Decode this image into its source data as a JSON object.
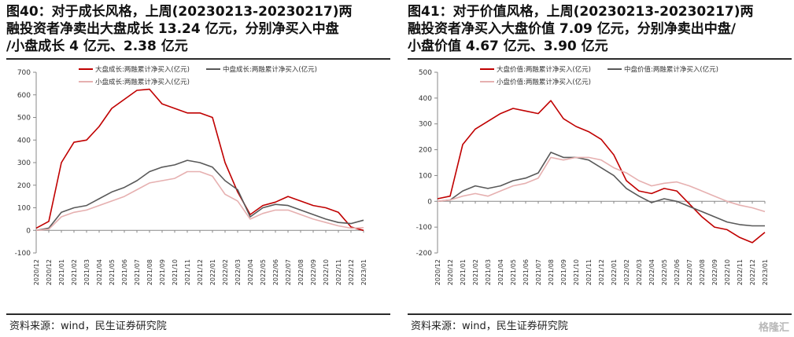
{
  "panels": [
    {
      "title_lines": [
        "图40：对于成长风格，上周(20230213-20230217)两",
        "融投资者净卖出大盘成长 13.24 亿元，分别净买入中盘",
        "/小盘成长 4 亿元、2.38 亿元"
      ],
      "source": "资料来源：wind，民生证券研究院"
    },
    {
      "title_lines": [
        "图41：对于价值风格，上周(20230213-20230217)两",
        "融投资者净买入大盘价值 7.09 亿元，分别净卖出中盘/",
        "小盘价值 4.67 亿元、3.90 亿元"
      ],
      "source": "资料来源：wind，民生证券研究院"
    }
  ],
  "watermark": "格隆汇",
  "chart_data": [
    {
      "type": "line",
      "ylim": [
        -100,
        700
      ],
      "yticks": [
        -100,
        0,
        100,
        200,
        300,
        400,
        500,
        600,
        700
      ],
      "categories": [
        "2020/12",
        "2020/12",
        "2021/01",
        "2021/02",
        "2021/03",
        "2021/04",
        "2021/05",
        "2021/06",
        "2021/07",
        "2021/08",
        "2021/09",
        "2021/10",
        "2021/11",
        "2021/12",
        "2022/01",
        "2022/02",
        "2022/03",
        "2022/04",
        "2022/05",
        "2022/06",
        "2022/07",
        "2022/08",
        "2022/09",
        "2022/10",
        "2022/11",
        "2022/12",
        "2023/01"
      ],
      "legend_position": "top",
      "grid": false,
      "colors": [
        "#c00000",
        "#595959",
        "#e6b0b0"
      ],
      "series": [
        {
          "name": "大盘成长:两融累计净买入(亿元)",
          "values": [
            10,
            40,
            300,
            390,
            400,
            460,
            540,
            580,
            620,
            625,
            560,
            540,
            520,
            520,
            500,
            300,
            170,
            70,
            110,
            125,
            150,
            130,
            110,
            100,
            80,
            15,
            0
          ]
        },
        {
          "name": "中盘成长:两融累计净买入(亿元)",
          "values": [
            0,
            10,
            80,
            100,
            110,
            140,
            170,
            190,
            220,
            260,
            280,
            290,
            310,
            300,
            280,
            220,
            180,
            60,
            100,
            115,
            110,
            90,
            70,
            50,
            35,
            30,
            45
          ]
        },
        {
          "name": "小盘成长:两融累计净买入(亿元)",
          "values": [
            0,
            5,
            60,
            80,
            90,
            110,
            130,
            150,
            180,
            210,
            220,
            230,
            260,
            260,
            240,
            160,
            130,
            50,
            75,
            90,
            90,
            70,
            50,
            35,
            20,
            10,
            12
          ]
        }
      ]
    },
    {
      "type": "line",
      "ylim": [
        -200,
        500
      ],
      "yticks": [
        -200,
        -100,
        0,
        100,
        200,
        300,
        400,
        500
      ],
      "categories": [
        "2020/12",
        "2020/12",
        "2021/01",
        "2021/02",
        "2021/03",
        "2021/04",
        "2021/05",
        "2021/06",
        "2021/07",
        "2021/08",
        "2021/09",
        "2021/10",
        "2021/11",
        "2021/12",
        "2022/01",
        "2022/02",
        "2022/03",
        "2022/04",
        "2022/05",
        "2022/06",
        "2022/07",
        "2022/08",
        "2022/09",
        "2022/10",
        "2022/11",
        "2022/12",
        "2023/01"
      ],
      "legend_position": "top",
      "grid": false,
      "colors": [
        "#c00000",
        "#595959",
        "#e6b0b0"
      ],
      "series": [
        {
          "name": "大盘价值:两融累计净买入(亿元)",
          "values": [
            10,
            20,
            220,
            280,
            310,
            340,
            360,
            350,
            340,
            390,
            320,
            290,
            270,
            240,
            180,
            80,
            40,
            30,
            50,
            40,
            -10,
            -60,
            -100,
            -110,
            -140,
            -160,
            -120
          ]
        },
        {
          "name": "中盘价值:两融累计净买入(亿元)",
          "values": [
            0,
            5,
            40,
            60,
            50,
            60,
            80,
            90,
            110,
            190,
            170,
            170,
            160,
            130,
            100,
            50,
            20,
            -5,
            10,
            0,
            -20,
            -40,
            -60,
            -80,
            -90,
            -95,
            -95
          ]
        },
        {
          "name": "小盘价值:两融累计净买入(亿元)",
          "values": [
            0,
            5,
            20,
            30,
            20,
            40,
            60,
            70,
            90,
            170,
            160,
            170,
            170,
            160,
            130,
            110,
            80,
            60,
            70,
            75,
            60,
            40,
            20,
            0,
            -15,
            -25,
            -40
          ]
        }
      ]
    }
  ]
}
